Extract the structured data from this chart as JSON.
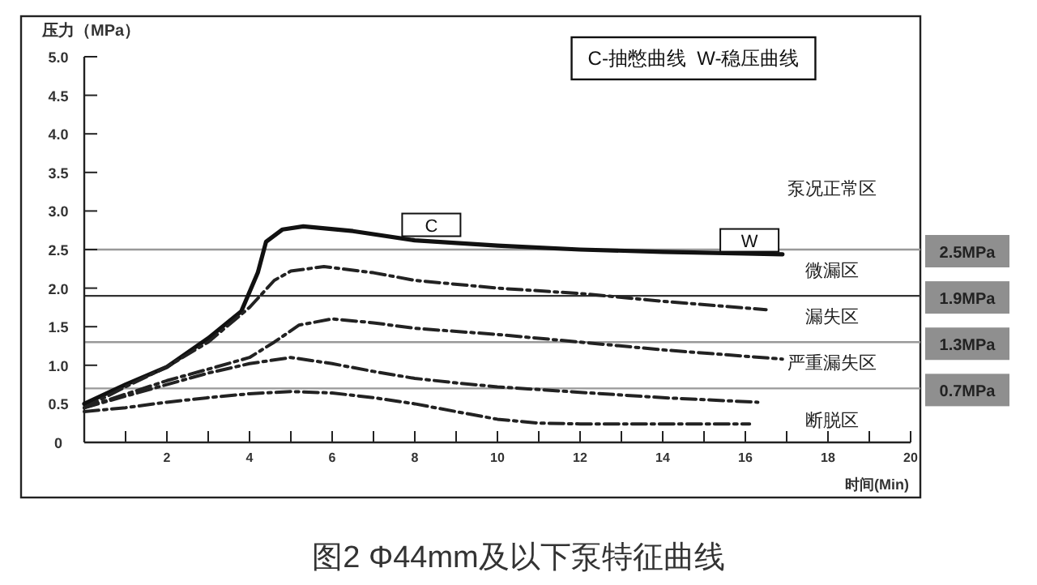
{
  "chart_data": {
    "type": "line",
    "title": "图2 Φ44mm及以下泵特征曲线",
    "xlabel": "时间(Min)",
    "ylabel": "压力（MPa）",
    "xlim": [
      0,
      20
    ],
    "ylim": [
      0,
      5
    ],
    "xticks": [
      {
        "value": 1,
        "label": null
      },
      2,
      {
        "value": 3,
        "label": null
      },
      4,
      {
        "value": 5,
        "label": null
      },
      6,
      {
        "value": 7,
        "label": null
      },
      8,
      {
        "value": 9,
        "label": null
      },
      10,
      {
        "value": 11,
        "label": null
      },
      12,
      {
        "value": 13,
        "label": null
      },
      14,
      {
        "value": 15,
        "label": null
      },
      16,
      {
        "value": 17,
        "label": null
      },
      18,
      {
        "value": 19,
        "label": null
      },
      20
    ],
    "yticks": [
      0,
      0.5,
      {
        "value": 1,
        "label": "1.0"
      },
      1.5,
      {
        "value": 2,
        "label": "2.0"
      },
      2.5,
      {
        "value": 3,
        "label": "3.0"
      },
      3.5,
      {
        "value": 4,
        "label": "4.0"
      },
      4.5,
      {
        "value": 5,
        "label": "5.0"
      }
    ],
    "marker": "none",
    "series": [
      {
        "color": "#111111",
        "line_style": "solid",
        "x": [
          0,
          1,
          2,
          3,
          3.8,
          4.2,
          4.4,
          4.8,
          5.3,
          6.5,
          8,
          10,
          12,
          14,
          16,
          16.9
        ],
        "values": [
          0.5,
          0.75,
          0.98,
          1.35,
          1.7,
          2.2,
          2.6,
          2.76,
          2.8,
          2.74,
          2.62,
          2.55,
          2.5,
          2.47,
          2.45,
          2.44
        ]
      },
      {
        "color": "#222222",
        "line_style": "dashed",
        "x": [
          0,
          1,
          2,
          3,
          4,
          4.6,
          5,
          5.8,
          7,
          8,
          10,
          12,
          14,
          16.5
        ],
        "values": [
          0.45,
          0.72,
          0.98,
          1.3,
          1.75,
          2.1,
          2.22,
          2.28,
          2.2,
          2.1,
          2.0,
          1.93,
          1.83,
          1.72
        ]
      },
      {
        "color": "#222222",
        "line_style": "dashed",
        "x": [
          0,
          2,
          3,
          4,
          4.6,
          5.2,
          6,
          7,
          8,
          10,
          12,
          14,
          16.9
        ],
        "values": [
          0.45,
          0.8,
          0.95,
          1.1,
          1.3,
          1.52,
          1.6,
          1.55,
          1.48,
          1.4,
          1.3,
          1.2,
          1.08
        ]
      },
      {
        "color": "#222222",
        "line_style": "dashed",
        "x": [
          0,
          2,
          3,
          4,
          5,
          6,
          7,
          8,
          9,
          10,
          12,
          14,
          16.3
        ],
        "values": [
          0.45,
          0.75,
          0.9,
          1.02,
          1.1,
          1.02,
          0.92,
          0.83,
          0.77,
          0.72,
          0.65,
          0.58,
          0.52
        ]
      },
      {
        "color": "#222222",
        "line_style": "dashed",
        "x": [
          0,
          1,
          2,
          3,
          4,
          5,
          6,
          7,
          8,
          9,
          10,
          11,
          12,
          14,
          16.1
        ],
        "values": [
          0.4,
          0.45,
          0.52,
          0.58,
          0.63,
          0.66,
          0.64,
          0.58,
          0.5,
          0.4,
          0.3,
          0.25,
          0.24,
          0.24,
          0.24
        ]
      }
    ],
    "ref_lines": [
      {
        "axis": "y",
        "value": 2.5,
        "label": "2.5MPa",
        "color": "#999999"
      },
      {
        "axis": "y",
        "value": 1.9,
        "label": "1.9MPa",
        "color": "#333333"
      },
      {
        "axis": "y",
        "value": 1.3,
        "label": "1.3MPa",
        "color": "#999999"
      },
      {
        "axis": "y",
        "value": 0.7,
        "label": "0.7MPa",
        "color": "#999999"
      }
    ],
    "annotations": [
      "C-抽憋曲线  W-稳压曲线",
      {
        "text": "C",
        "x": 8.4,
        "y": 2.82
      },
      {
        "text": "W",
        "x": 16.1,
        "y": 2.62
      },
      "泵况正常区",
      "微漏区",
      "漏失区",
      "严重漏失区",
      "断脱区"
    ]
  }
}
